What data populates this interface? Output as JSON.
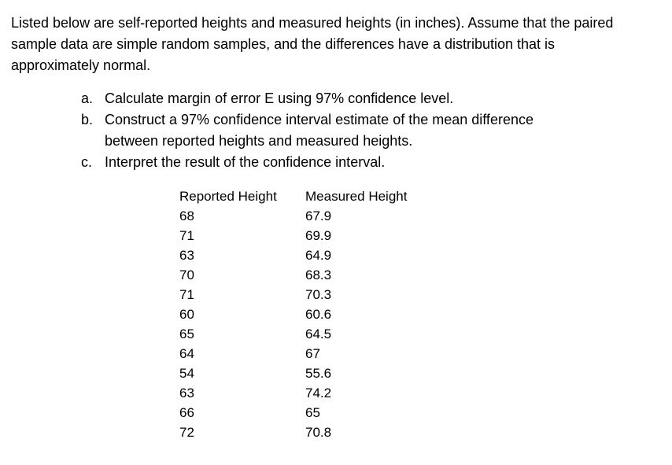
{
  "intro": "Listed below are self-reported heights and measured heights (in inches). Assume that the paired sample data are simple random samples, and the differences have a distribution that is approximately normal.",
  "tasks": [
    {
      "label": "a.",
      "text": "Calculate margin of error E using 97% confidence level."
    },
    {
      "label": "b.",
      "text": "Construct a 97% confidence interval estimate of the mean difference between reported heights and measured heights."
    },
    {
      "label": "c.",
      "text": "Interpret the result of the confidence interval."
    }
  ],
  "table": {
    "columns": [
      "Reported Height",
      "Measured Height"
    ],
    "rows": [
      [
        "68",
        "67.9"
      ],
      [
        "71",
        "69.9"
      ],
      [
        "63",
        "64.9"
      ],
      [
        "70",
        "68.3"
      ],
      [
        "71",
        "70.3"
      ],
      [
        "60",
        "60.6"
      ],
      [
        "65",
        "64.5"
      ],
      [
        "64",
        "67"
      ],
      [
        "54",
        "55.6"
      ],
      [
        "63",
        "74.2"
      ],
      [
        "66",
        "65"
      ],
      [
        "72",
        "70.8"
      ]
    ]
  }
}
